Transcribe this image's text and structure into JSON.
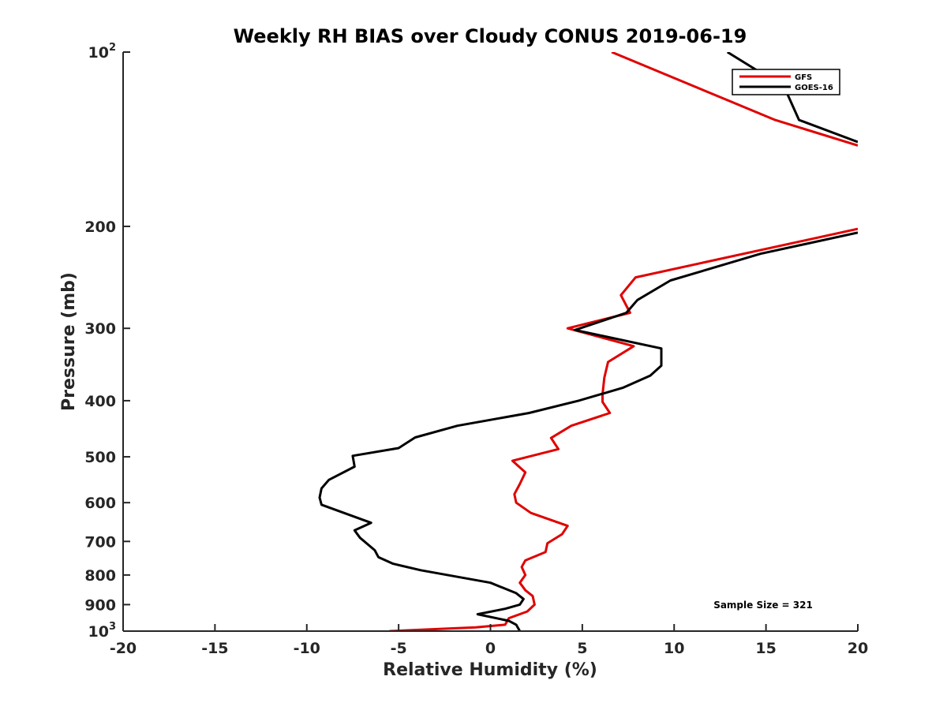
{
  "chart_data": {
    "type": "line",
    "title": "Weekly RH BIAS over Cloudy CONUS 2019-06-19",
    "xlabel": "Relative Humidity (%)",
    "ylabel": "Pressure (mb)",
    "xlim": [
      -20,
      20
    ],
    "ylim": [
      1000,
      100
    ],
    "y_scale": "log",
    "x_ticks": [
      -20,
      -15,
      -10,
      -5,
      0,
      5,
      10,
      15,
      20
    ],
    "x_tick_labels": [
      "-20",
      "-15",
      "-10",
      "-5",
      "0",
      "5",
      "10",
      "15",
      "20"
    ],
    "y_ticks": [
      {
        "value": 100,
        "base": "10",
        "exp": "2"
      },
      {
        "value": 200,
        "base": "200",
        "exp": ""
      },
      {
        "value": 300,
        "base": "300",
        "exp": ""
      },
      {
        "value": 400,
        "base": "400",
        "exp": ""
      },
      {
        "value": 500,
        "base": "500",
        "exp": ""
      },
      {
        "value": 600,
        "base": "600",
        "exp": ""
      },
      {
        "value": 700,
        "base": "700",
        "exp": ""
      },
      {
        "value": 800,
        "base": "800",
        "exp": ""
      },
      {
        "value": 900,
        "base": "900",
        "exp": ""
      },
      {
        "value": 1000,
        "base": "10",
        "exp": "3"
      }
    ],
    "grid": false,
    "legend_position": "top-right",
    "annotation": "Sample Size = 321",
    "series": [
      {
        "name": "GFS",
        "color": "#e00000",
        "points": [
          {
            "x": 6.6,
            "y": 100
          },
          {
            "x": 15.5,
            "y": 131
          },
          {
            "x": 20.0,
            "y": 145
          },
          {
            "x": null,
            "y": null
          },
          {
            "x": 20.0,
            "y": 202
          },
          {
            "x": 7.9,
            "y": 245
          },
          {
            "x": 7.1,
            "y": 263
          },
          {
            "x": 7.6,
            "y": 282
          },
          {
            "x": 4.2,
            "y": 300
          },
          {
            "x": 7.8,
            "y": 322
          },
          {
            "x": 6.4,
            "y": 343
          },
          {
            "x": 6.2,
            "y": 365
          },
          {
            "x": 6.1,
            "y": 390
          },
          {
            "x": 6.1,
            "y": 402
          },
          {
            "x": 6.5,
            "y": 420
          },
          {
            "x": 4.4,
            "y": 442
          },
          {
            "x": 3.3,
            "y": 464
          },
          {
            "x": 3.7,
            "y": 485
          },
          {
            "x": 1.2,
            "y": 508
          },
          {
            "x": 1.9,
            "y": 532
          },
          {
            "x": 1.6,
            "y": 557
          },
          {
            "x": 1.3,
            "y": 580
          },
          {
            "x": 1.4,
            "y": 600
          },
          {
            "x": 2.2,
            "y": 625
          },
          {
            "x": 4.2,
            "y": 658
          },
          {
            "x": 3.9,
            "y": 680
          },
          {
            "x": 3.1,
            "y": 705
          },
          {
            "x": 3.0,
            "y": 730
          },
          {
            "x": 1.9,
            "y": 755
          },
          {
            "x": 1.7,
            "y": 775
          },
          {
            "x": 1.9,
            "y": 800
          },
          {
            "x": 1.6,
            "y": 825
          },
          {
            "x": 1.9,
            "y": 850
          },
          {
            "x": 2.3,
            "y": 870
          },
          {
            "x": 2.4,
            "y": 900
          },
          {
            "x": 2.0,
            "y": 925
          },
          {
            "x": 1.0,
            "y": 950
          },
          {
            "x": 0.8,
            "y": 975
          },
          {
            "x": -0.8,
            "y": 985
          },
          {
            "x": -5.5,
            "y": 1000
          }
        ]
      },
      {
        "name": "GOES-16",
        "color": "#000000",
        "points": [
          {
            "x": 12.9,
            "y": 100
          },
          {
            "x": 16.0,
            "y": 115
          },
          {
            "x": 16.8,
            "y": 131
          },
          {
            "x": 20.0,
            "y": 143
          },
          {
            "x": null,
            "y": null
          },
          {
            "x": 20.0,
            "y": 205
          },
          {
            "x": 14.7,
            "y": 223
          },
          {
            "x": 9.8,
            "y": 248
          },
          {
            "x": 8.0,
            "y": 268
          },
          {
            "x": 7.4,
            "y": 282
          },
          {
            "x": 4.6,
            "y": 302
          },
          {
            "x": 9.3,
            "y": 325
          },
          {
            "x": 9.3,
            "y": 348
          },
          {
            "x": 8.7,
            "y": 362
          },
          {
            "x": 7.2,
            "y": 380
          },
          {
            "x": 4.8,
            "y": 400
          },
          {
            "x": 2.1,
            "y": 420
          },
          {
            "x": -1.8,
            "y": 442
          },
          {
            "x": -4.1,
            "y": 463
          },
          {
            "x": -5.0,
            "y": 483
          },
          {
            "x": -7.5,
            "y": 498
          },
          {
            "x": -7.4,
            "y": 520
          },
          {
            "x": -8.8,
            "y": 548
          },
          {
            "x": -9.2,
            "y": 567
          },
          {
            "x": -9.3,
            "y": 588
          },
          {
            "x": -9.2,
            "y": 605
          },
          {
            "x": -6.5,
            "y": 650
          },
          {
            "x": -7.4,
            "y": 670
          },
          {
            "x": -7.1,
            "y": 690
          },
          {
            "x": -6.3,
            "y": 725
          },
          {
            "x": -6.1,
            "y": 745
          },
          {
            "x": -5.3,
            "y": 765
          },
          {
            "x": -3.8,
            "y": 785
          },
          {
            "x": 0.0,
            "y": 825
          },
          {
            "x": 1.4,
            "y": 860
          },
          {
            "x": 1.8,
            "y": 880
          },
          {
            "x": 1.6,
            "y": 900
          },
          {
            "x": 0.8,
            "y": 915
          },
          {
            "x": -0.7,
            "y": 935
          },
          {
            "x": 1.0,
            "y": 960
          },
          {
            "x": 1.4,
            "y": 975
          },
          {
            "x": 1.6,
            "y": 1000
          }
        ]
      }
    ]
  }
}
